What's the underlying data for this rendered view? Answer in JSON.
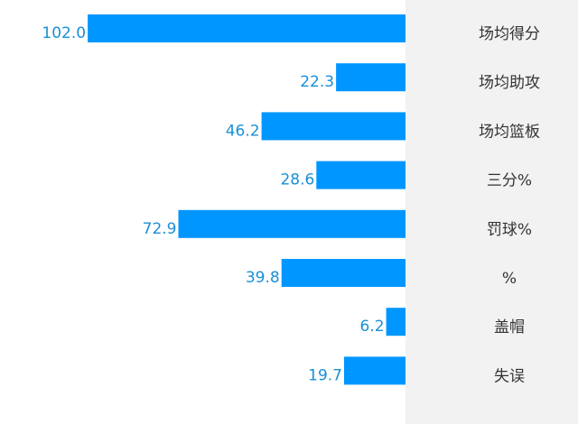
{
  "chart_data": {
    "type": "bar",
    "orientation": "horizontal",
    "direction": "right-to-left",
    "categories": [
      "场均得分",
      "场均助攻",
      "场均篮板",
      "三分%",
      "罚球%",
      "%",
      "盖帽",
      "失误"
    ],
    "values": [
      102.0,
      22.3,
      46.2,
      28.6,
      72.9,
      39.8,
      6.2,
      19.7
    ],
    "value_labels": [
      "102.0",
      "22.3",
      "46.2",
      "28.6",
      "72.9",
      "39.8",
      "6.2",
      "19.7"
    ],
    "title": "",
    "xlabel": "",
    "ylabel": "",
    "bar_color": "#0096ff",
    "label_color": "#1a8fd8",
    "category_color": "#333333",
    "panel_color": "#f2f2f2",
    "grid": false,
    "legend": "none"
  }
}
